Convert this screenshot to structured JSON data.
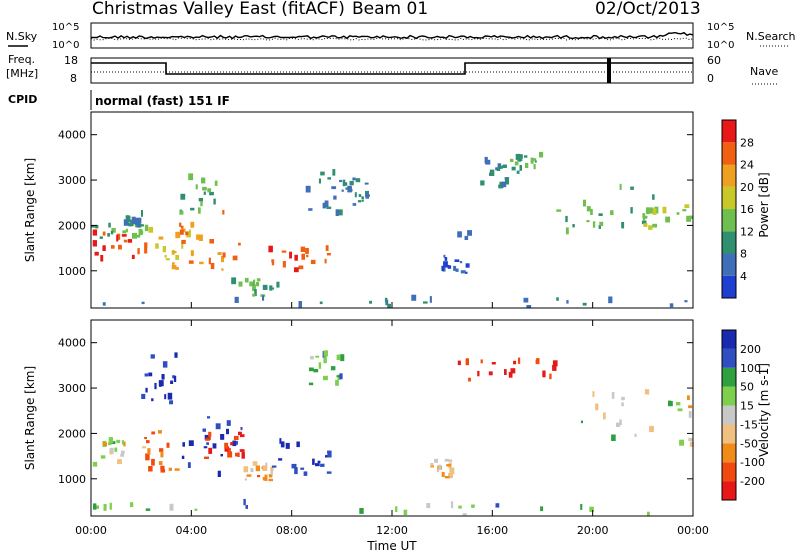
{
  "header": {
    "station": "Christmas Valley East (fitACF)",
    "beam": "Beam 01",
    "date": "02/Oct/2013"
  },
  "ancillary": {
    "nsky_label": "N.Sky",
    "nsearch_label": "N.Search",
    "freq_label_1": "Freq.",
    "freq_label_2": "[MHz]",
    "nave_label": "Nave",
    "cpid_label": "CPID",
    "cpid_value": "normal (fast) 151 IF",
    "noise_left_ticks": [
      "10^5",
      "10^0"
    ],
    "noise_right_ticks": [
      "10^5",
      "10^0"
    ],
    "freq_ticks": [
      "18",
      "8"
    ],
    "nave_ticks": [
      "60",
      "0"
    ]
  },
  "colors": {
    "power": [
      "#1f3fd0",
      "#3f6fb8",
      "#2f8f6f",
      "#6fbf4f",
      "#c8c828",
      "#f0a020",
      "#f06010",
      "#e81818"
    ],
    "velocity": [
      "#e81818",
      "#f04a10",
      "#f08a18",
      "#f0c080",
      "#c8c8c8",
      "#7fcf4f",
      "#2fa040",
      "#2f4fc0",
      "#1a2ab0"
    ]
  },
  "chart_data": [
    {
      "type": "heatmap",
      "name": "power",
      "ylabel": "Slant Range [km]",
      "yticks": [
        "1000",
        "2000",
        "3000",
        "4000"
      ],
      "colorbar_label": "Power [dB]",
      "colorbar_ticks": [
        "4",
        "8",
        "12",
        "16",
        "20",
        "24",
        "28"
      ],
      "ylim": [
        180,
        4500
      ],
      "xlim_hours": [
        0,
        24
      ],
      "regions": [
        {
          "x": [
            0.0,
            2.2
          ],
          "y": [
            1200,
            1800
          ],
          "v": 28
        },
        {
          "x": [
            0.0,
            2.2
          ],
          "y": [
            1700,
            2000
          ],
          "v": 12
        },
        {
          "x": [
            1.3,
            2.0
          ],
          "y": [
            1900,
            2200
          ],
          "v": 8
        },
        {
          "x": [
            2.0,
            4.5
          ],
          "y": [
            1100,
            1900
          ],
          "v": 20
        },
        {
          "x": [
            3.0,
            6.0
          ],
          "y": [
            1000,
            2400
          ],
          "v": 24
        },
        {
          "x": [
            3.5,
            5.0
          ],
          "y": [
            2200,
            3000
          ],
          "v": 12
        },
        {
          "x": [
            5.5,
            7.5
          ],
          "y": [
            400,
            800
          ],
          "v": 12
        },
        {
          "x": [
            7.0,
            9.5
          ],
          "y": [
            900,
            1500
          ],
          "v": 28
        },
        {
          "x": [
            8.5,
            10.5
          ],
          "y": [
            2200,
            3200
          ],
          "v": 8
        },
        {
          "x": [
            10.0,
            11.0
          ],
          "y": [
            2500,
            3000
          ],
          "v": 8
        },
        {
          "x": [
            13.3,
            15.0
          ],
          "y": [
            900,
            1800
          ],
          "v": 4
        },
        {
          "x": [
            15.5,
            16.5
          ],
          "y": [
            2800,
            3400
          ],
          "v": 8
        },
        {
          "x": [
            16.5,
            18.0
          ],
          "y": [
            3100,
            3500
          ],
          "v": 12
        },
        {
          "x": [
            18.5,
            22.5
          ],
          "y": [
            1800,
            2900
          ],
          "v": 12
        },
        {
          "x": [
            22.0,
            24.0
          ],
          "y": [
            1900,
            2400
          ],
          "v": 16
        },
        {
          "x": [
            0.0,
            24.0
          ],
          "y": [
            180,
            350
          ],
          "v": 8
        }
      ]
    },
    {
      "type": "heatmap",
      "name": "velocity",
      "ylabel": "Slant Range [km]",
      "yticks": [
        "1000",
        "2000",
        "3000",
        "4000"
      ],
      "xlabel": "Time UT",
      "xticks": [
        "00:00",
        "04:00",
        "08:00",
        "12:00",
        "16:00",
        "20:00",
        "00:00"
      ],
      "colorbar_label": "Velocity [m s-1]",
      "colorbar_ticks": [
        "-200",
        "-100",
        "-50",
        "-15",
        "15",
        "50",
        "100",
        "200"
      ],
      "ylim": [
        180,
        4500
      ],
      "xlim_hours": [
        0,
        24
      ],
      "regions": [
        {
          "x": [
            0.0,
            1.4
          ],
          "y": [
            1200,
            1800
          ],
          "v": 0
        },
        {
          "x": [
            2.0,
            3.5
          ],
          "y": [
            1100,
            2000
          ],
          "v": -100
        },
        {
          "x": [
            2.0,
            3.5
          ],
          "y": [
            2600,
            3800
          ],
          "v": 200
        },
        {
          "x": [
            3.5,
            6.0
          ],
          "y": [
            900,
            2400
          ],
          "v": 200
        },
        {
          "x": [
            4.5,
            6.0
          ],
          "y": [
            1400,
            2000
          ],
          "v": -200
        },
        {
          "x": [
            6.0,
            7.2
          ],
          "y": [
            900,
            1300
          ],
          "v": -50
        },
        {
          "x": [
            7.2,
            9.5
          ],
          "y": [
            1000,
            1800
          ],
          "v": 200
        },
        {
          "x": [
            8.5,
            10.0
          ],
          "y": [
            3000,
            3700
          ],
          "v": 50
        },
        {
          "x": [
            14.5,
            18.5
          ],
          "y": [
            3100,
            3600
          ],
          "v": -200
        },
        {
          "x": [
            13.4,
            14.4
          ],
          "y": [
            1000,
            1400
          ],
          "v": -50
        },
        {
          "x": [
            19.5,
            24.0
          ],
          "y": [
            1700,
            2900
          ],
          "v": 0
        },
        {
          "x": [
            0.0,
            24.0
          ],
          "y": [
            180,
            450
          ],
          "v": 50
        }
      ]
    }
  ]
}
